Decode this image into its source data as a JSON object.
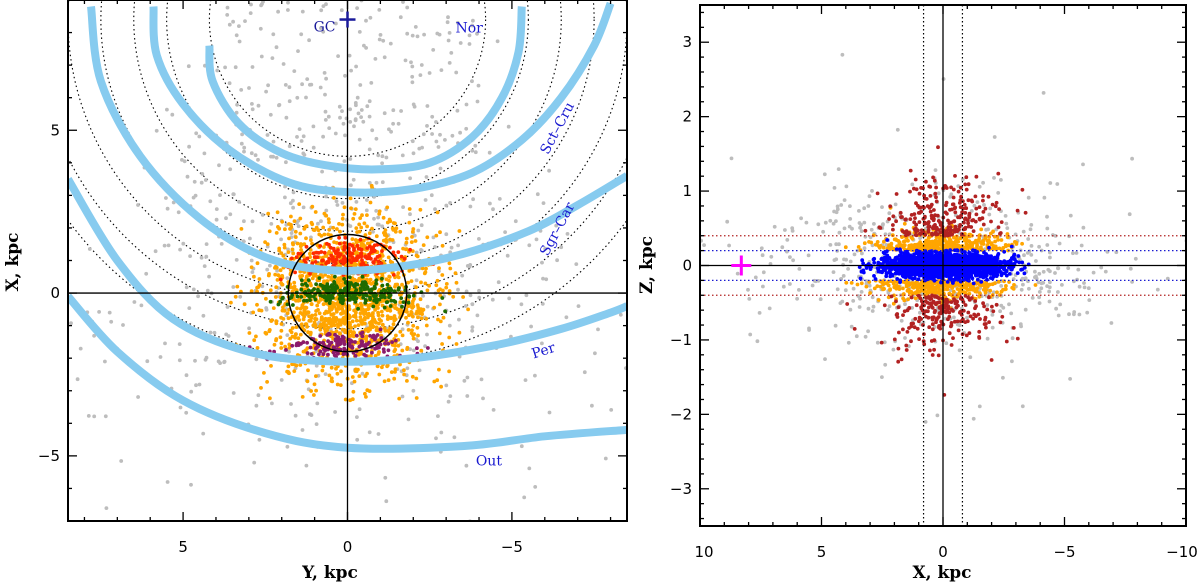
{
  "chart_data": [
    {
      "id": "left",
      "type": "scatter",
      "xlabel": "Y, kpc",
      "ylabel": "X, kpc",
      "xlim": [
        8.5,
        -8.5
      ],
      "ylim": [
        -7,
        9
      ],
      "xticks": [
        5,
        0,
        -5
      ],
      "yticks": [
        5,
        0,
        -5
      ],
      "xtick_labels": [
        "5",
        "0",
        "−5"
      ],
      "ytick_labels": [
        "5",
        "0",
        "−5"
      ],
      "gc_label": "GC",
      "gc_position": [
        0,
        8.4
      ],
      "sun_circle_radius": 1.8,
      "reference_circles_radii": [
        4.2,
        5.5,
        6.5,
        7.5,
        8.5,
        9.5,
        10.5
      ],
      "spiral_arms": [
        {
          "name": "Nor",
          "label_at": [
            -3.7,
            8.0
          ],
          "points": [
            [
              4.2,
              7.6
            ],
            [
              4.1,
              6.5
            ],
            [
              3.3,
              5.2
            ],
            [
              2.0,
              4.3
            ],
            [
              0.5,
              3.9
            ],
            [
              -1.0,
              3.8
            ],
            [
              -2.5,
              4.0
            ],
            [
              -3.8,
              4.8
            ],
            [
              -4.7,
              6.0
            ],
            [
              -5.2,
              7.4
            ],
            [
              -5.3,
              8.8
            ]
          ]
        },
        {
          "name": "Sct–Cru",
          "label_at": [
            -6.5,
            5.0
          ],
          "points": [
            [
              5.9,
              8.8
            ],
            [
              5.8,
              7.3
            ],
            [
              5.0,
              5.8
            ],
            [
              3.6,
              4.4
            ],
            [
              1.8,
              3.4
            ],
            [
              0,
              3.1
            ],
            [
              -2.0,
              3.2
            ],
            [
              -3.8,
              3.7
            ],
            [
              -5.3,
              4.7
            ],
            [
              -6.5,
              6.0
            ],
            [
              -7.5,
              7.6
            ],
            [
              -8.0,
              8.9
            ]
          ]
        },
        {
          "name": "Sgr–Car",
          "label_at": [
            -6.5,
            1.9
          ],
          "points": [
            [
              7.8,
              8.8
            ],
            [
              7.5,
              6.5
            ],
            [
              6.3,
              4.2
            ],
            [
              4.5,
              2.3
            ],
            [
              2.5,
              1.1
            ],
            [
              0.5,
              0.7
            ],
            [
              -1.5,
              0.8
            ],
            [
              -3.5,
              1.2
            ],
            [
              -5.5,
              1.9
            ],
            [
              -7.0,
              2.7
            ],
            [
              -8.5,
              3.6
            ]
          ]
        },
        {
          "name": "Per",
          "label_at": [
            -6.0,
            -1.9
          ],
          "points": [
            [
              8.5,
              3.5
            ],
            [
              7.0,
              1.0
            ],
            [
              5.3,
              -0.8
            ],
            [
              3.0,
              -1.8
            ],
            [
              0.5,
              -2.1
            ],
            [
              -2.0,
              -2.0
            ],
            [
              -4.5,
              -1.6
            ],
            [
              -6.5,
              -1.1
            ],
            [
              -8.0,
              -0.6
            ],
            [
              -8.5,
              -0.4
            ]
          ]
        },
        {
          "name": "Out",
          "label_at": [
            -4.3,
            -5.3
          ],
          "points": [
            [
              8.5,
              -0.1
            ],
            [
              7.0,
              -1.8
            ],
            [
              5.0,
              -3.3
            ],
            [
              2.5,
              -4.3
            ],
            [
              0,
              -4.75
            ],
            [
              -3.5,
              -4.7
            ],
            [
              -6.0,
              -4.4
            ],
            [
              -8.5,
              -4.2
            ]
          ]
        }
      ],
      "point_colors": [
        "#bdbdbd",
        "#ffa500",
        "#ff2a00",
        "#1e6b00",
        "#8b1a6b"
      ],
      "point_groups": [
        {
          "color": "#bdbdbd",
          "n": 700,
          "region": "halo"
        },
        {
          "color": "#ffa500",
          "n": 1500,
          "region": "disk"
        },
        {
          "color": "#ff2a00",
          "n": 180,
          "region": "band_north"
        },
        {
          "color": "#1e6b00",
          "n": 260,
          "region": "band_mid"
        },
        {
          "color": "#8b1a6b",
          "n": 150,
          "region": "band_south"
        }
      ]
    },
    {
      "id": "right",
      "type": "scatter",
      "xlabel": "X, kpc",
      "ylabel": "Z, kpc",
      "xlim": [
        10,
        -10
      ],
      "ylim": [
        -3.5,
        3.5
      ],
      "xticks": [
        10,
        5,
        0,
        -5,
        -10
      ],
      "yticks": [
        3,
        2,
        1,
        0,
        -1,
        -2,
        -3
      ],
      "xtick_labels": [
        "10",
        "5",
        "0",
        "−5",
        "−10"
      ],
      "ytick_labels": [
        "3",
        "2",
        "1",
        "0",
        "−1",
        "−2",
        "−3"
      ],
      "vertical_dotted_x": [
        0.8,
        -0.8
      ],
      "horizontal_lines": [
        {
          "z": 0.4,
          "color": "#b22222"
        },
        {
          "z": 0.2,
          "color": "#1a1ad0"
        },
        {
          "z": -0.2,
          "color": "#1a1ad0"
        },
        {
          "z": -0.4,
          "color": "#b22222"
        }
      ],
      "gc_marker": {
        "x": 8.3,
        "z": 0.0,
        "color": "#ff00ff"
      },
      "point_colors": [
        "#bdbdbd",
        "#ffa500",
        "#b22222",
        "#0000ff"
      ],
      "point_groups": [
        {
          "color": "#bdbdbd",
          "n": 600,
          "region": "halo"
        },
        {
          "color": "#ffa500",
          "n": 700,
          "region": "thick"
        },
        {
          "color": "#b22222",
          "n": 450,
          "region": "outer"
        },
        {
          "color": "#0000ff",
          "n": 2200,
          "region": "thin"
        }
      ]
    }
  ]
}
